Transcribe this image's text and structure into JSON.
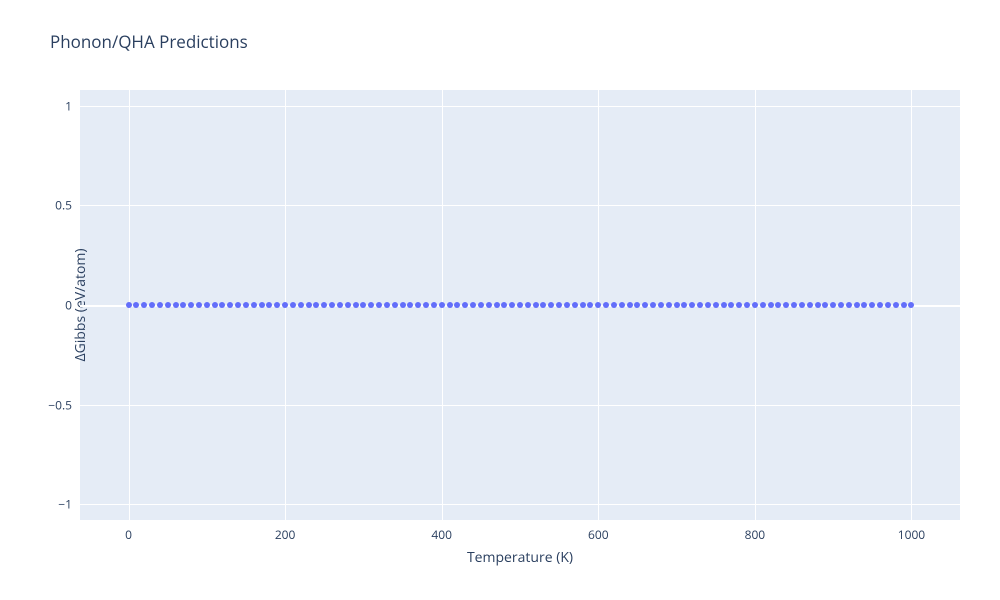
{
  "chart": {
    "type": "scatter",
    "title": "Phonon/QHA Predictions",
    "title_fontsize": 17,
    "title_color": "#2a3f5f",
    "xlabel": "Temperature (K)",
    "ylabel": "ΔGibbs (eV/atom)",
    "label_fontsize": 14,
    "tick_fontsize": 12,
    "background_color": "#ffffff",
    "plot_bg_color": "#e5ecf6",
    "grid_color": "#ffffff",
    "xlim": [
      -62,
      1062
    ],
    "ylim": [
      -1.08,
      1.08
    ],
    "xticks": [
      0,
      200,
      400,
      600,
      800,
      1000
    ],
    "yticks": [
      -1,
      -0.5,
      0,
      0.5,
      1
    ],
    "ytick_labels": [
      "−1",
      "−0.5",
      "0",
      "0.5",
      "1"
    ],
    "series": [
      {
        "name": "gibbs",
        "marker_color": "#636efa",
        "marker_size_px": 6,
        "x": [
          0,
          10,
          20,
          30,
          40,
          50,
          60,
          70,
          80,
          90,
          100,
          110,
          120,
          130,
          140,
          150,
          160,
          170,
          180,
          190,
          200,
          210,
          220,
          230,
          240,
          250,
          260,
          270,
          280,
          290,
          300,
          310,
          320,
          330,
          340,
          350,
          360,
          370,
          380,
          390,
          400,
          410,
          420,
          430,
          440,
          450,
          460,
          470,
          480,
          490,
          500,
          510,
          520,
          530,
          540,
          550,
          560,
          570,
          580,
          590,
          600,
          610,
          620,
          630,
          640,
          650,
          660,
          670,
          680,
          690,
          700,
          710,
          720,
          730,
          740,
          750,
          760,
          770,
          780,
          790,
          800,
          810,
          820,
          830,
          840,
          850,
          860,
          870,
          880,
          890,
          900,
          910,
          920,
          930,
          940,
          950,
          960,
          970,
          980,
          990,
          1000
        ],
        "y": [
          0,
          0,
          0,
          0,
          0,
          0,
          0,
          0,
          0,
          0,
          0,
          0,
          0,
          0,
          0,
          0,
          0,
          0,
          0,
          0,
          0,
          0,
          0,
          0,
          0,
          0,
          0,
          0,
          0,
          0,
          0,
          0,
          0,
          0,
          0,
          0,
          0,
          0,
          0,
          0,
          0,
          0,
          0,
          0,
          0,
          0,
          0,
          0,
          0,
          0,
          0,
          0,
          0,
          0,
          0,
          0,
          0,
          0,
          0,
          0,
          0,
          0,
          0,
          0,
          0,
          0,
          0,
          0,
          0,
          0,
          0,
          0,
          0,
          0,
          0,
          0,
          0,
          0,
          0,
          0,
          0,
          0,
          0,
          0,
          0,
          0,
          0,
          0,
          0,
          0,
          0,
          0,
          0,
          0,
          0,
          0,
          0,
          0,
          0,
          0,
          0
        ]
      }
    ]
  }
}
